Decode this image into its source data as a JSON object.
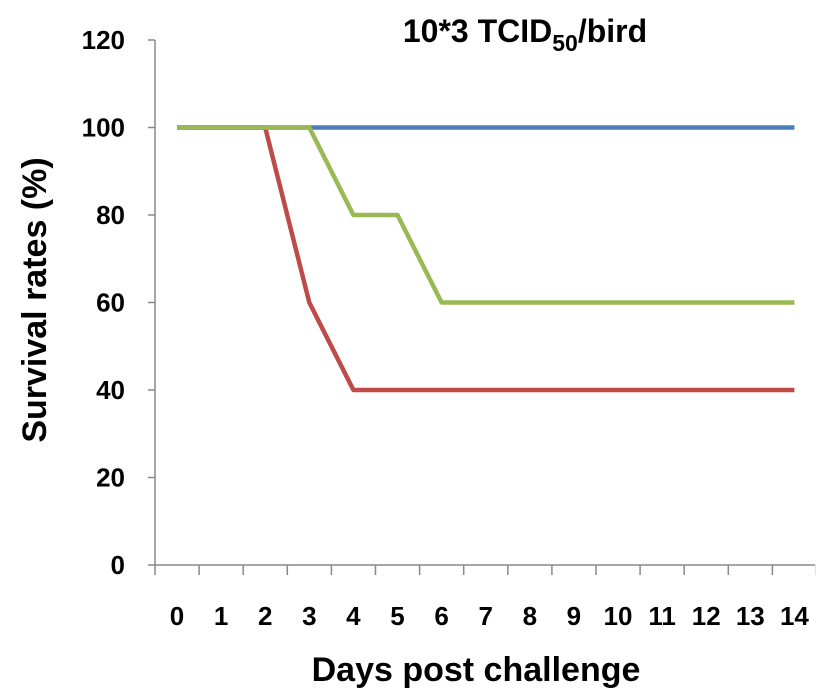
{
  "chart_data": {
    "type": "line",
    "title": {
      "main": "10*3 TCID",
      "sub": "50",
      "suffix": "/bird"
    },
    "xlabel": "Days post challenge",
    "ylabel": "Survival rates (%)",
    "x": [
      0,
      1,
      2,
      3,
      4,
      5,
      6,
      7,
      8,
      9,
      10,
      11,
      12,
      13,
      14
    ],
    "xticks": [
      "0",
      "1",
      "2",
      "3",
      "4",
      "5",
      "6",
      "7",
      "8",
      "9",
      "10",
      "11",
      "12",
      "13",
      "14"
    ],
    "yticks": [
      "0",
      "20",
      "40",
      "60",
      "80",
      "100",
      "120"
    ],
    "ylim": [
      0,
      120
    ],
    "grid": false,
    "legend": "none",
    "series": [
      {
        "color": "#4a7ebb",
        "points": [
          [
            0,
            100
          ],
          [
            14,
            100
          ]
        ]
      },
      {
        "color": "#be4b48",
        "points": [
          [
            0,
            100
          ],
          [
            2,
            100
          ],
          [
            3,
            60
          ],
          [
            4,
            40
          ],
          [
            14,
            40
          ]
        ]
      },
      {
        "color": "#98b954",
        "points": [
          [
            0,
            100
          ],
          [
            3,
            100
          ],
          [
            4,
            80
          ],
          [
            5,
            80
          ],
          [
            6,
            60
          ],
          [
            14,
            60
          ]
        ]
      }
    ]
  }
}
